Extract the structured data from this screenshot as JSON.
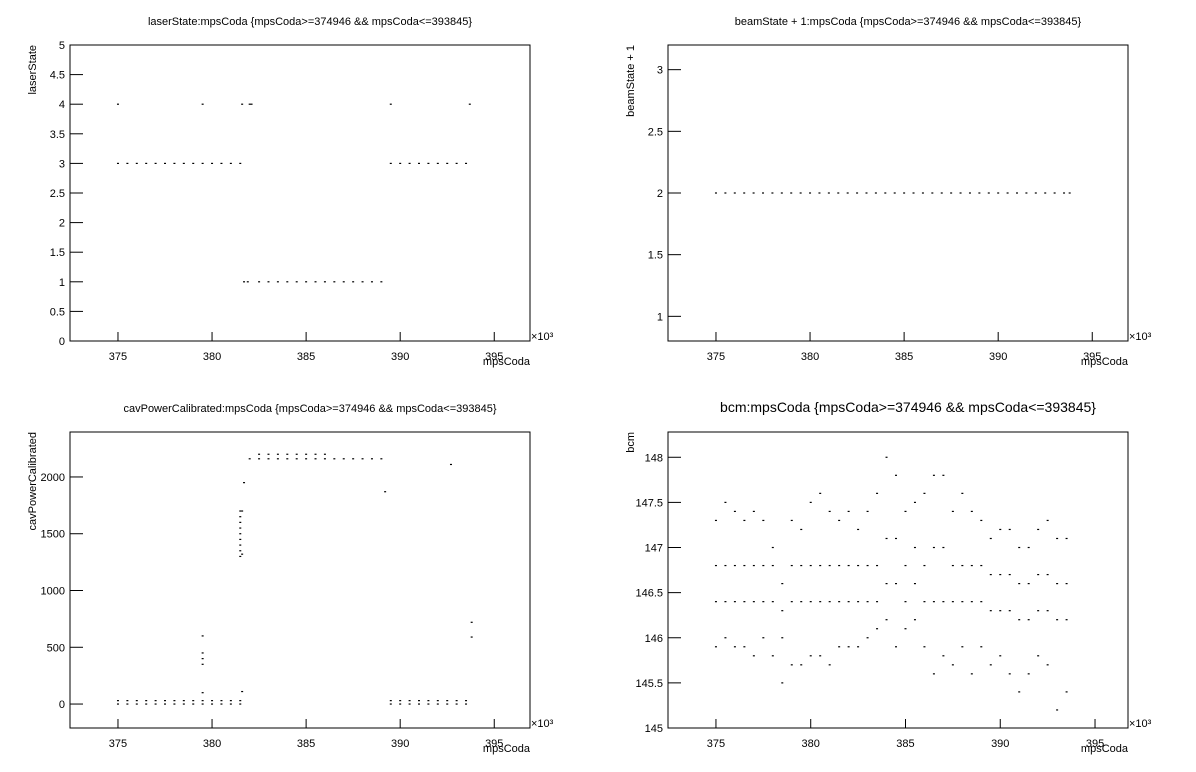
{
  "chart_data": [
    {
      "type": "scatter",
      "title": "laserState:mpsCoda {mpsCoda>=374946 && mpsCoda<=393845}",
      "xlabel": "mpsCoda",
      "ylabel": "laserState",
      "x_multiplier": "×10³",
      "color": "#000000",
      "xlim": [
        372.45,
        396.9
      ],
      "ylim": [
        0,
        5
      ],
      "xticks": [
        375,
        380,
        385,
        390,
        395
      ],
      "yticks": [
        0,
        0.5,
        1,
        1.5,
        2,
        2.5,
        3,
        3.5,
        4,
        4.5,
        5
      ],
      "x": [
        375,
        379.5,
        381.6,
        382.0,
        382.1,
        389.5,
        393.7,
        375,
        375.5,
        376,
        376.5,
        377,
        377.5,
        378,
        378.5,
        379,
        379.5,
        380,
        380.5,
        381,
        381.5,
        389.5,
        390,
        390.5,
        391,
        391.5,
        392,
        392.5,
        393,
        393.5,
        381.7,
        381.9,
        382.5,
        383,
        383.5,
        384,
        384.5,
        385,
        385.5,
        386,
        386.5,
        387,
        387.5,
        388,
        388.5,
        389
      ],
      "values": [
        4,
        4,
        4,
        4,
        4,
        4,
        4,
        3,
        3,
        3,
        3,
        3,
        3,
        3,
        3,
        3,
        3,
        3,
        3,
        3,
        3,
        3,
        3,
        3,
        3,
        3,
        3,
        3,
        3,
        3,
        1,
        1,
        1,
        1,
        1,
        1,
        1,
        1,
        1,
        1,
        1,
        1,
        1,
        1,
        1,
        1
      ]
    },
    {
      "type": "scatter",
      "title": "beamState + 1:mpsCoda {mpsCoda>=374946 && mpsCoda<=393845}",
      "xlabel": "mpsCoda",
      "ylabel": "beamState + 1",
      "x_multiplier": "×10³",
      "color": "#000000",
      "xlim": [
        372.45,
        396.9
      ],
      "ylim": [
        0.8,
        3.2
      ],
      "xticks": [
        375,
        380,
        385,
        390,
        395
      ],
      "yticks": [
        1,
        1.5,
        2,
        2.5,
        3
      ],
      "x": [
        375,
        375.5,
        376,
        376.5,
        377,
        377.5,
        378,
        378.5,
        379,
        379.5,
        380,
        380.5,
        381,
        381.5,
        382,
        382.5,
        383,
        383.5,
        384,
        384.5,
        385,
        385.5,
        386,
        386.5,
        387,
        387.5,
        388,
        388.5,
        389,
        389.5,
        390,
        390.5,
        391,
        391.5,
        392,
        392.5,
        393,
        393.5,
        393.8
      ],
      "values": [
        2,
        2,
        2,
        2,
        2,
        2,
        2,
        2,
        2,
        2,
        2,
        2,
        2,
        2,
        2,
        2,
        2,
        2,
        2,
        2,
        2,
        2,
        2,
        2,
        2,
        2,
        2,
        2,
        2,
        2,
        2,
        2,
        2,
        2,
        2,
        2,
        2,
        2,
        2
      ]
    },
    {
      "type": "scatter",
      "title": "cavPowerCalibrated:mpsCoda {mpsCoda>=374946 && mpsCoda<=393845}",
      "xlabel": "mpsCoda",
      "ylabel": "cavPowerCalibrated",
      "x_multiplier": "×10³",
      "color": "#000000",
      "xlim": [
        372.45,
        396.9
      ],
      "ylim": [
        -211,
        2396
      ],
      "xticks": [
        375,
        380,
        385,
        390,
        395
      ],
      "yticks": [
        0,
        500,
        1000,
        1500,
        2000
      ],
      "x": [
        375,
        375.5,
        376,
        376.5,
        377,
        377.5,
        378,
        378.5,
        379,
        379.5,
        380,
        380.5,
        381,
        381.5,
        375,
        375.5,
        376,
        376.5,
        377,
        377.5,
        378,
        378.5,
        379,
        379.5,
        380,
        380.5,
        381,
        381.5,
        389.5,
        390,
        390.5,
        391,
        391.5,
        392,
        392.5,
        393,
        393.5,
        389.5,
        390,
        390.5,
        391,
        391.5,
        392,
        392.5,
        393,
        393.5,
        382,
        382.5,
        383,
        383.5,
        384,
        384.5,
        385,
        385.5,
        386,
        386.5,
        387,
        387.5,
        388,
        388.5,
        389,
        382.5,
        383,
        383.5,
        384,
        384.5,
        385,
        385.5,
        386,
        381.5,
        381.5,
        381.5,
        381.5,
        381.5,
        381.5,
        381.5,
        381.5,
        381.5,
        381.6,
        381.6,
        379.5,
        379.5,
        379.5,
        379.5,
        379.5,
        381.7,
        389.2,
        393.8,
        393.8,
        381.6,
        392.7
      ],
      "values": [
        0,
        0,
        0,
        0,
        0,
        0,
        0,
        0,
        0,
        0,
        0,
        0,
        0,
        0,
        30,
        30,
        30,
        30,
        30,
        30,
        30,
        30,
        30,
        30,
        30,
        30,
        30,
        30,
        0,
        0,
        0,
        0,
        0,
        0,
        0,
        0,
        0,
        30,
        30,
        30,
        30,
        30,
        30,
        30,
        30,
        30,
        2160,
        2160,
        2160,
        2160,
        2160,
        2160,
        2160,
        2160,
        2160,
        2160,
        2160,
        2160,
        2160,
        2160,
        2160,
        2200,
        2200,
        2200,
        2200,
        2200,
        2200,
        2200,
        2200,
        1300,
        1350,
        1400,
        1450,
        1500,
        1550,
        1600,
        1650,
        1700,
        1320,
        1700,
        600,
        450,
        400,
        350,
        100,
        1950,
        1870,
        720,
        590,
        110,
        2110
      ]
    },
    {
      "type": "scatter",
      "title": "bcm:mpsCoda {mpsCoda>=374946 && mpsCoda<=393845}",
      "xlabel": "mpsCoda",
      "ylabel": "bcm",
      "x_multiplier": "×10³",
      "color": "#000000",
      "xlim": [
        372.47,
        396.74
      ],
      "ylim": [
        145,
        148.28
      ],
      "xticks": [
        375,
        380,
        385,
        390,
        395
      ],
      "yticks": [
        145,
        145.5,
        146,
        146.5,
        147,
        147.5,
        148
      ],
      "x": [
        375,
        375,
        375,
        375,
        375.5,
        375.5,
        375.5,
        375.5,
        376,
        376,
        376,
        376,
        376.5,
        376.5,
        376.5,
        376.5,
        377,
        377,
        377,
        377,
        377.5,
        377.5,
        377.5,
        377.5,
        378,
        378,
        378,
        378,
        378.5,
        378.5,
        378.5,
        378.5,
        379,
        379,
        379,
        379,
        379.5,
        379.5,
        379.5,
        379.5,
        380,
        380,
        380,
        380,
        380.5,
        380.5,
        380.5,
        380.5,
        381,
        381,
        381,
        381,
        381.5,
        381.5,
        381.5,
        381.5,
        382,
        382,
        382,
        382,
        382.5,
        382.5,
        382.5,
        382.5,
        383,
        383,
        383,
        383,
        383.5,
        383.5,
        383.5,
        383.5,
        384,
        384,
        384,
        384,
        384.5,
        384.5,
        384.5,
        384.5,
        385,
        385,
        385,
        385,
        385.5,
        385.5,
        385.5,
        385.5,
        386,
        386,
        386,
        386,
        386.5,
        386.5,
        386.5,
        386.5,
        387,
        387,
        387,
        387,
        387.5,
        387.5,
        387.5,
        387.5,
        388,
        388,
        388,
        388,
        388.5,
        388.5,
        388.5,
        388.5,
        389,
        389,
        389,
        389,
        389.5,
        389.5,
        389.5,
        389.5,
        390,
        390,
        390,
        390,
        390.5,
        390.5,
        390.5,
        390.5,
        391,
        391,
        391,
        391,
        391.5,
        391.5,
        391.5,
        391.5,
        392,
        392,
        392,
        392,
        392.5,
        392.5,
        392.5,
        392.5,
        393,
        393,
        393,
        393,
        393.5,
        393.5,
        393.5,
        393.5
      ],
      "values": [
        145.9,
        146.4,
        146.8,
        147.3,
        146.0,
        146.4,
        146.8,
        147.5,
        145.9,
        146.4,
        146.8,
        147.4,
        145.9,
        146.4,
        146.8,
        147.3,
        145.8,
        146.4,
        146.8,
        147.4,
        146.0,
        146.4,
        146.8,
        147.3,
        145.8,
        146.4,
        146.8,
        147.0,
        145.5,
        146.0,
        146.3,
        146.6,
        145.7,
        146.4,
        146.8,
        147.3,
        145.7,
        146.4,
        146.8,
        147.2,
        145.8,
        146.4,
        146.8,
        147.5,
        145.8,
        146.4,
        146.8,
        147.6,
        145.7,
        146.4,
        146.8,
        147.4,
        145.9,
        146.4,
        146.8,
        147.3,
        145.9,
        146.4,
        146.8,
        147.4,
        145.9,
        146.4,
        146.8,
        147.2,
        146.0,
        146.4,
        146.8,
        147.4,
        146.1,
        146.4,
        146.8,
        147.6,
        146.2,
        146.6,
        147.1,
        148.0,
        145.9,
        146.6,
        147.1,
        147.8,
        146.1,
        146.4,
        146.8,
        147.4,
        146.2,
        146.6,
        147.0,
        147.5,
        145.9,
        146.4,
        146.8,
        147.6,
        145.6,
        146.4,
        147.0,
        147.8,
        145.8,
        146.4,
        147.0,
        147.8,
        145.7,
        146.4,
        146.8,
        147.4,
        145.9,
        146.4,
        146.8,
        147.6,
        145.6,
        146.4,
        146.8,
        147.4,
        145.9,
        146.4,
        146.8,
        147.3,
        145.7,
        146.3,
        146.7,
        147.1,
        145.8,
        146.3,
        146.7,
        147.2,
        145.6,
        146.3,
        146.7,
        147.2,
        145.4,
        146.2,
        146.6,
        147.0,
        145.6,
        146.2,
        146.6,
        147.0,
        145.8,
        146.3,
        146.7,
        147.2,
        145.7,
        146.3,
        146.7,
        147.3,
        145.2,
        146.2,
        146.6,
        147.1,
        145.4,
        146.2,
        146.6,
        147.1
      ]
    }
  ]
}
